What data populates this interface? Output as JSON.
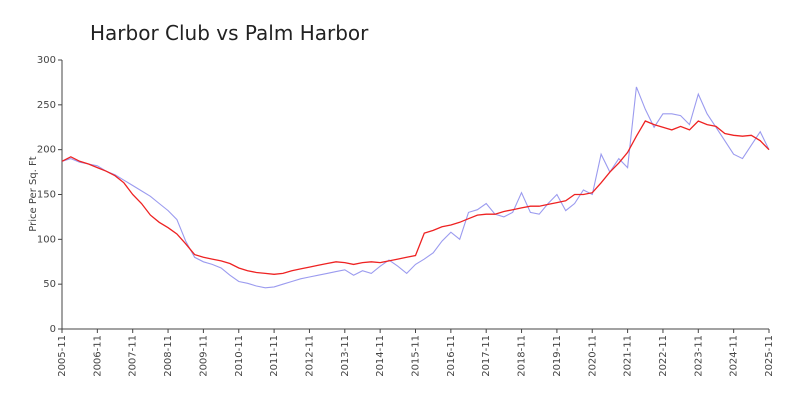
{
  "chart_data": {
    "type": "line",
    "title": "Harbor Club vs Palm Harbor",
    "ylabel": "Price Per Sq. Ft",
    "x": [
      "2005-11",
      "2006-02",
      "2006-05",
      "2006-08",
      "2006-11",
      "2007-02",
      "2007-05",
      "2007-08",
      "2007-11",
      "2008-02",
      "2008-05",
      "2008-08",
      "2008-11",
      "2009-02",
      "2009-05",
      "2009-08",
      "2009-11",
      "2010-02",
      "2010-05",
      "2010-08",
      "2010-11",
      "2011-02",
      "2011-05",
      "2011-08",
      "2011-11",
      "2012-02",
      "2012-05",
      "2012-08",
      "2012-11",
      "2013-02",
      "2013-05",
      "2013-08",
      "2013-11",
      "2014-02",
      "2014-05",
      "2014-08",
      "2014-11",
      "2015-02",
      "2015-05",
      "2015-08",
      "2015-11",
      "2016-02",
      "2016-05",
      "2016-08",
      "2016-11",
      "2017-02",
      "2017-05",
      "2017-08",
      "2017-11",
      "2018-02",
      "2018-05",
      "2018-08",
      "2018-11",
      "2019-02",
      "2019-05",
      "2019-08",
      "2019-11",
      "2020-02",
      "2020-05",
      "2020-08",
      "2020-11",
      "2021-02",
      "2021-05",
      "2021-08",
      "2021-11",
      "2022-02",
      "2022-05",
      "2022-08",
      "2022-11",
      "2023-02",
      "2023-05",
      "2023-08",
      "2023-11",
      "2024-02",
      "2024-05",
      "2024-08",
      "2024-11",
      "2025-02",
      "2025-05",
      "2025-08",
      "2025-11"
    ],
    "series": [
      {
        "color": "#9b9bef",
        "values": [
          187,
          190,
          186,
          184,
          182,
          176,
          172,
          166,
          160,
          154,
          148,
          140,
          132,
          122,
          98,
          80,
          75,
          72,
          68,
          60,
          53,
          51,
          48,
          46,
          47,
          50,
          53,
          56,
          58,
          60,
          62,
          64,
          66,
          60,
          65,
          62,
          70,
          77,
          70,
          62,
          72,
          78,
          85,
          98,
          108,
          100,
          130,
          133,
          140,
          128,
          125,
          130,
          152,
          130,
          128,
          140,
          150,
          132,
          140,
          155,
          150,
          195,
          175,
          190,
          180,
          270,
          245,
          225,
          240,
          240,
          238,
          228,
          262,
          240,
          225,
          210,
          195,
          190,
          205,
          220,
          200
        ]
      },
      {
        "color": "#ee2222",
        "values": [
          187,
          192,
          187,
          184,
          180,
          176,
          171,
          163,
          150,
          140,
          127,
          119,
          113,
          106,
          95,
          83,
          80,
          78,
          76,
          73,
          68,
          65,
          63,
          62,
          61,
          62,
          65,
          67,
          69,
          71,
          73,
          75,
          74,
          72,
          74,
          75,
          74,
          76,
          78,
          80,
          82,
          107,
          110,
          114,
          116,
          119,
          123,
          127,
          128,
          128,
          131,
          133,
          135,
          137,
          137,
          139,
          141,
          143,
          150,
          150,
          152,
          163,
          175,
          185,
          197,
          215,
          232,
          228,
          225,
          222,
          226,
          222,
          232,
          228,
          226,
          218,
          216,
          215,
          216,
          210,
          200
        ]
      }
    ],
    "xlim": [
      "2005-11",
      "2025-11"
    ],
    "xticks": [
      "2005-11",
      "2006-11",
      "2007-11",
      "2008-11",
      "2009-11",
      "2010-11",
      "2011-11",
      "2012-11",
      "2013-11",
      "2014-11",
      "2015-11",
      "2016-11",
      "2017-11",
      "2018-11",
      "2019-11",
      "2020-11",
      "2021-11",
      "2022-11",
      "2023-11",
      "2024-11",
      "2025-11"
    ],
    "ylim": [
      0,
      300
    ],
    "yticks": [
      0,
      50,
      100,
      150,
      200,
      250,
      300
    ]
  }
}
